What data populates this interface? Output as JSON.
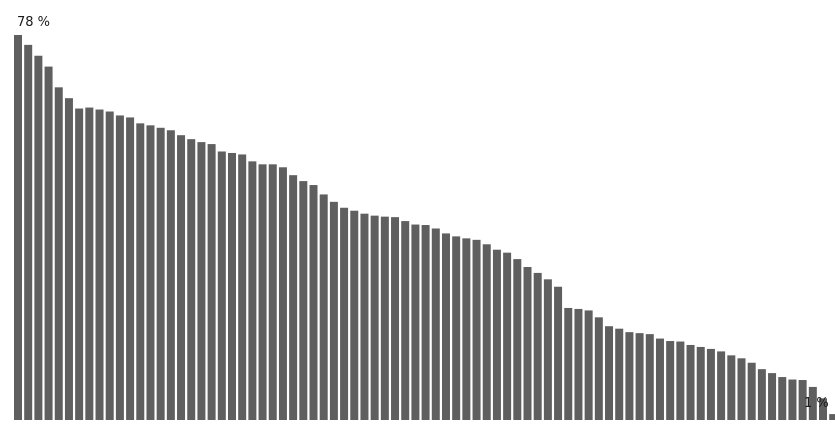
{
  "chart_data": {
    "type": "bar",
    "title": "",
    "xlabel": "",
    "ylabel": "",
    "unit": "%",
    "bar_color": "#5f5f5f",
    "ylim": [
      0,
      78
    ],
    "grid": false,
    "first_label": "78 %",
    "last_label": "1 %",
    "values": [
      78,
      76,
      73.8,
      71.6,
      67.4,
      65.2,
      63.1,
      63.3,
      62.9,
      62.5,
      61.7,
      61.3,
      60.1,
      59.7,
      59.2,
      58.7,
      57.7,
      56.9,
      56.3,
      55.9,
      54.4,
      54.1,
      53.8,
      52.4,
      51.8,
      51.8,
      51.2,
      49.6,
      48.4,
      47.6,
      45.7,
      44.2,
      43.0,
      42.4,
      41.8,
      41.4,
      41.2,
      41.1,
      40.3,
      39.6,
      39.5,
      38.8,
      37.8,
      37.2,
      36.8,
      36.5,
      35.6,
      34.5,
      33.9,
      32.6,
      31.0,
      29.8,
      28.5,
      27.0,
      22.7,
      22.5,
      22.2,
      20.8,
      19.0,
      18.5,
      17.8,
      17.6,
      17.4,
      16.5,
      16.0,
      15.9,
      15.2,
      14.8,
      14.4,
      13.9,
      13.1,
      12.5,
      11.6,
      10.3,
      9.5,
      8.7,
      8.2,
      8.1,
      6.7,
      4.4,
      1.2
    ]
  }
}
